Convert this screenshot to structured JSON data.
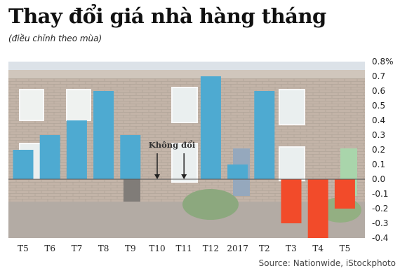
{
  "title": "Thay đổi giá nhà hàng tháng",
  "subtitle": "(điều chỉnh theo mùa)",
  "source": "Source: Nationwide, iStockphoto",
  "annotation": "Không đổi",
  "colors": {
    "positive": "#4eaad1",
    "negative": "#f24b2a",
    "zero_line": "#555555",
    "photo_sky": "#c9d3dc",
    "photo_brick": "#a08a78",
    "photo_door": "#5d7a9a",
    "photo_hedge": "#4f7a3a"
  },
  "chart_data": {
    "type": "bar",
    "categories": [
      "T5",
      "T6",
      "T7",
      "T8",
      "T9",
      "T10",
      "T11",
      "T12",
      "2017",
      "T2",
      "T3",
      "T4",
      "T5"
    ],
    "values": [
      0.2,
      0.3,
      0.4,
      0.6,
      0.3,
      0.0,
      0.0,
      0.7,
      0.1,
      0.6,
      -0.3,
      -0.4,
      -0.2
    ],
    "ylim": [
      -0.4,
      0.8
    ],
    "y_ticks": [
      "0.8%",
      "0.7",
      "0.6",
      "0.5",
      "0.4",
      "0.3",
      "0.2",
      "0.1",
      "0.0",
      "-0.1",
      "-0.2",
      "-0.3",
      "-0.4"
    ],
    "y_axis_position": "right",
    "grid": false,
    "background": "photo of terraced houses",
    "annotation_arrows_on": [
      "T10",
      "T11"
    ]
  }
}
